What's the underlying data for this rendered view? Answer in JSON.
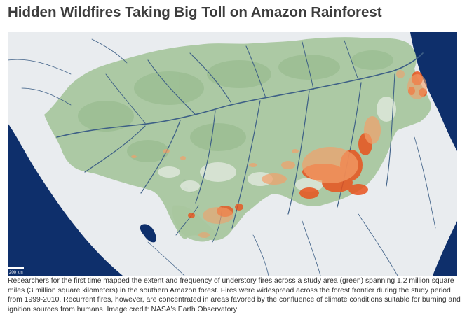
{
  "page": {
    "title": "Hidden Wildfires Taking Big Toll on Amazon Rainforest",
    "caption": "Researchers for the first time mapped the extent and frequency of understory fires across a study area (green) spanning 1.2 million square miles (3 million square kilometers) in the southern Amazon forest. Fires were widespread across the forest frontier during the study period from 1999-2010. Recurrent fires, however, are concentrated in areas favored by the confluence of climate conditions suitable for burning and ignition sources from humans. Image credit: NASA's Earth Observatory"
  },
  "map": {
    "scale_bar_label": "200 km",
    "colors": {
      "ocean": "#0e2f6b",
      "land": "#e8ebee",
      "study_area": "#a9c79f",
      "rivers": "#3d5f86",
      "fire": "#e9531d",
      "fire_light": "#f3a06a"
    },
    "legend_shown": false,
    "icon": "amazon-fire-map"
  }
}
